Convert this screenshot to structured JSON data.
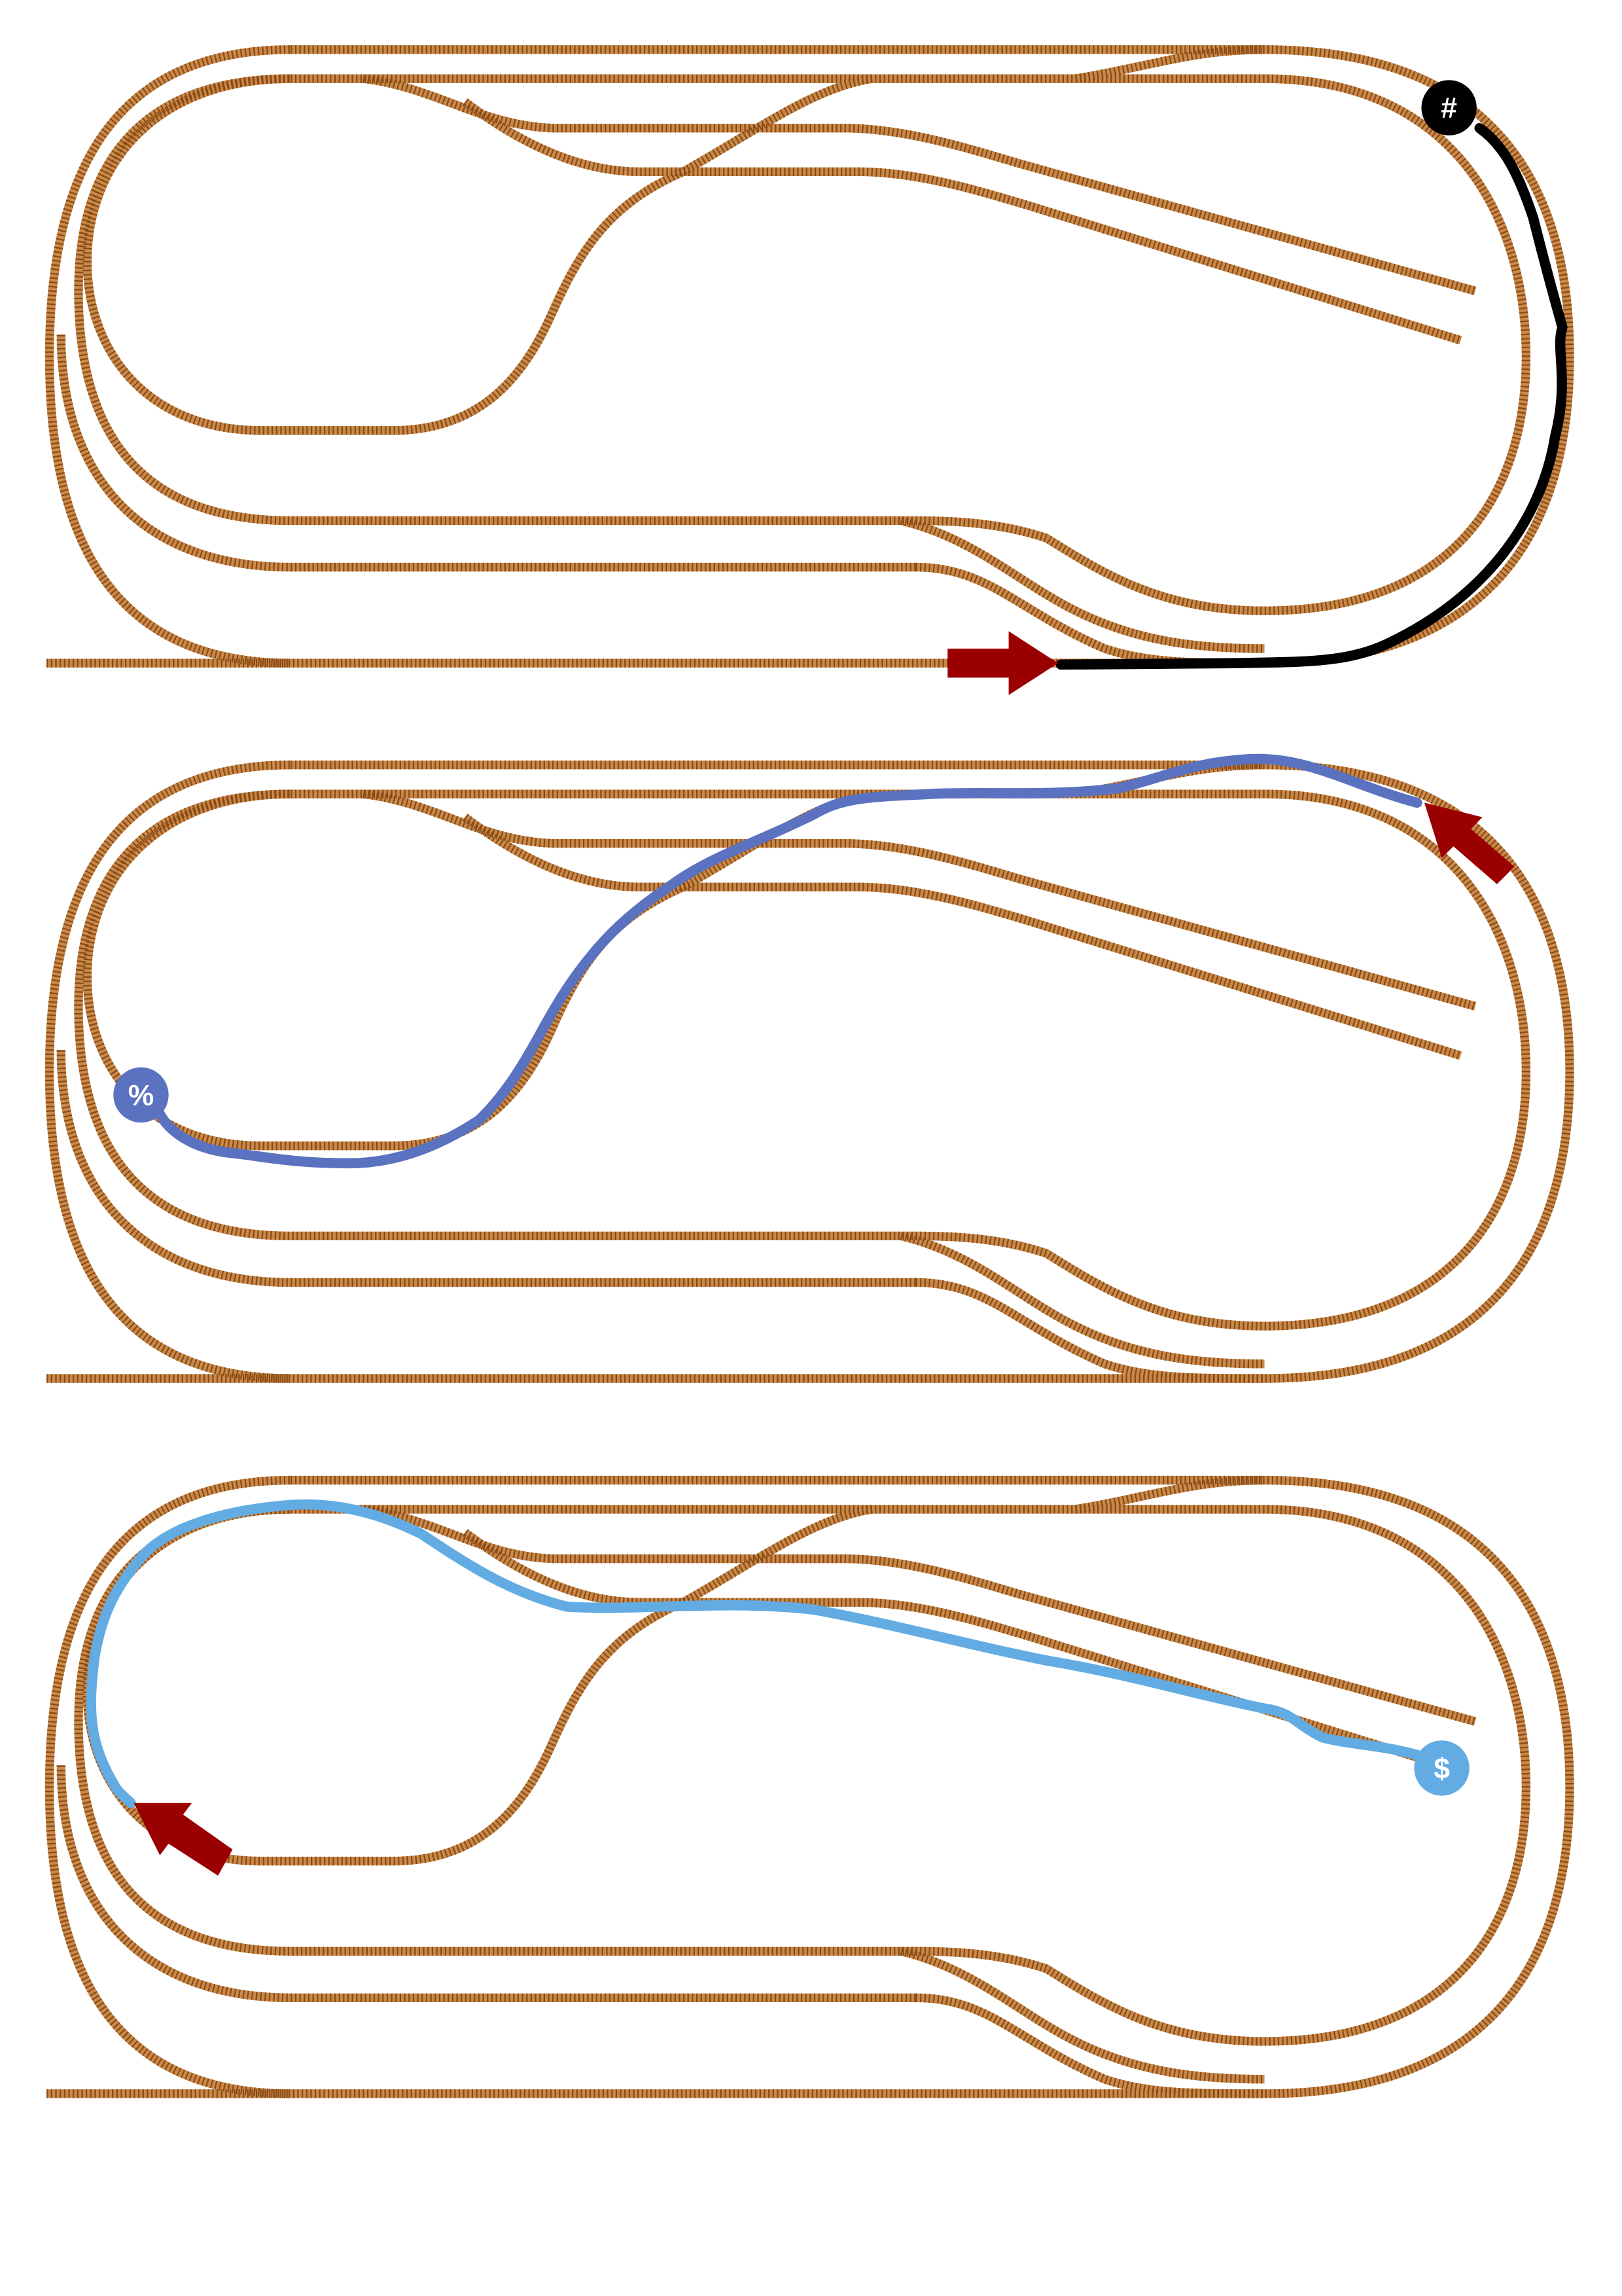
{
  "colors": {
    "background": "#ffffff",
    "track_bed": "#c8894a",
    "track_ties": "#8a4a14",
    "arrow": "#9b0000",
    "route_black": "#000000",
    "route_blue": "#5a72c0",
    "route_lightblue": "#62ace3",
    "marker_text": "#ffffff"
  },
  "panels": [
    {
      "route_color": "route_black",
      "marker": {
        "label": "#",
        "icon": "end-marker-icon"
      },
      "arrow": {
        "direction": "right",
        "icon": "start-arrow-icon"
      }
    },
    {
      "route_color": "route_blue",
      "marker": {
        "label": "%",
        "icon": "end-marker-icon"
      },
      "arrow": {
        "direction": "up-left",
        "icon": "start-arrow-icon"
      }
    },
    {
      "route_color": "route_lightblue",
      "marker": {
        "label": "$",
        "icon": "end-marker-icon"
      },
      "arrow": {
        "direction": "up-left",
        "icon": "start-arrow-icon"
      }
    }
  ]
}
